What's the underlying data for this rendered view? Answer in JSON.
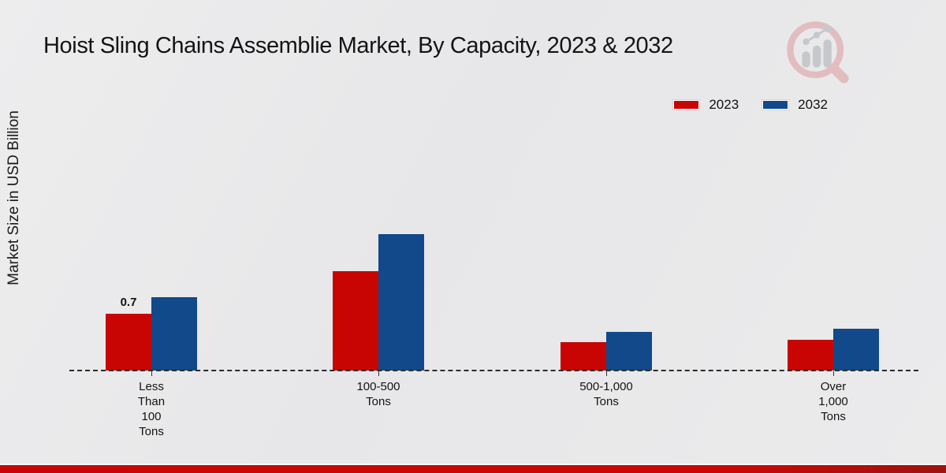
{
  "title": "Hoist Sling Chains Assemblie Market, By Capacity, 2023 & 2032",
  "y_axis_label": "Market Size in USD Billion",
  "logo": {
    "name": "market-research-magnifier-logo"
  },
  "colors": {
    "series_2023": "#c80502",
    "series_2032": "#11498a",
    "background": "#e9e9ea",
    "bottom_accent_bar": "#c70707",
    "baseline": "#2b2b2b"
  },
  "chart_data": {
    "type": "bar",
    "title": "Hoist Sling Chains Assemblie Market, By Capacity, 2023 & 2032",
    "ylabel": "Market Size in USD Billion",
    "xlabel": "",
    "categories": [
      "Less Than 100 Tons",
      "100-500 Tons",
      "500-1,000 Tons",
      "Over 1,000 Tons"
    ],
    "series": [
      {
        "name": "2023",
        "color": "#c80502",
        "values": [
          0.7,
          1.22,
          0.35,
          0.38
        ]
      },
      {
        "name": "2032",
        "color": "#11498a",
        "values": [
          0.9,
          1.68,
          0.48,
          0.51
        ]
      }
    ],
    "data_labels": [
      {
        "series_index": 0,
        "category_index": 0,
        "text": "0.7"
      }
    ],
    "ylim": [
      0,
      2
    ],
    "grid": false,
    "legend_position": "top-right",
    "legend_entries": [
      "2023",
      "2032"
    ],
    "baseline_style": "dashed"
  }
}
